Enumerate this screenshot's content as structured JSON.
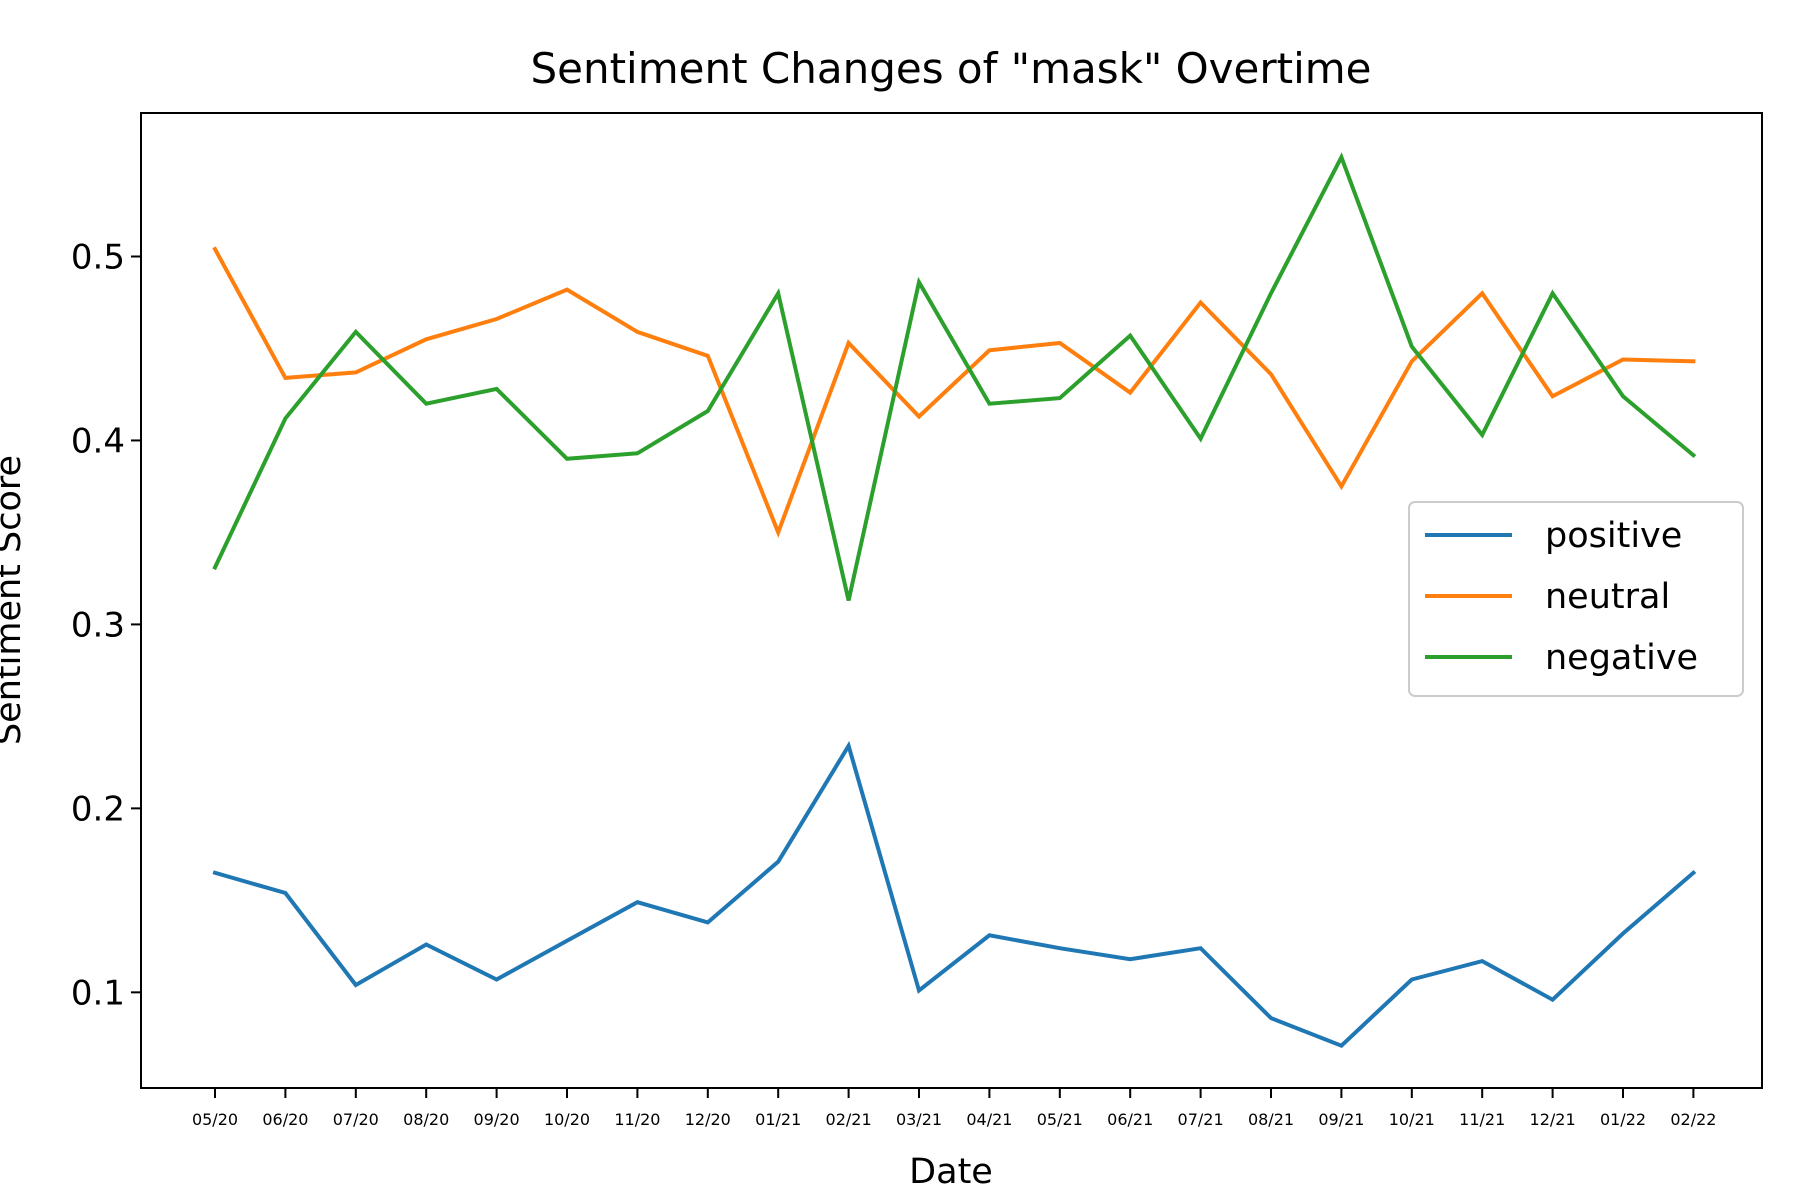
{
  "chart_data": {
    "type": "line",
    "title": "Sentiment Changes of \"mask\" Overtime",
    "xlabel": "Date",
    "ylabel": "Sentiment Score",
    "categories": [
      "05/20",
      "06/20",
      "07/20",
      "08/20",
      "09/20",
      "10/20",
      "11/20",
      "12/20",
      "01/21",
      "02/21",
      "03/21",
      "04/21",
      "05/21",
      "06/21",
      "07/21",
      "08/21",
      "09/21",
      "10/21",
      "11/21",
      "12/21",
      "01/22",
      "02/22"
    ],
    "ylim": [
      0.048,
      0.578
    ],
    "yticks": [
      0.1,
      0.2,
      0.3,
      0.4,
      0.5
    ],
    "grid": false,
    "legend_position": "center-right",
    "series": [
      {
        "name": "positive",
        "color": "#1f77b4",
        "values": [
          0.165,
          0.154,
          0.104,
          0.126,
          0.107,
          0.128,
          0.149,
          0.138,
          0.171,
          0.234,
          0.101,
          0.131,
          0.124,
          0.118,
          0.124,
          0.086,
          0.071,
          0.107,
          0.117,
          0.096,
          0.132,
          0.165
        ]
      },
      {
        "name": "neutral",
        "color": "#ff7f0e",
        "values": [
          0.504,
          0.434,
          0.437,
          0.455,
          0.466,
          0.482,
          0.459,
          0.446,
          0.35,
          0.453,
          0.413,
          0.449,
          0.453,
          0.426,
          0.475,
          0.436,
          0.375,
          0.443,
          0.48,
          0.424,
          0.444,
          0.443
        ]
      },
      {
        "name": "negative",
        "color": "#2ca02c",
        "values": [
          0.331,
          0.412,
          0.459,
          0.42,
          0.428,
          0.39,
          0.393,
          0.416,
          0.48,
          0.313,
          0.486,
          0.42,
          0.423,
          0.457,
          0.401,
          0.48,
          0.554,
          0.451,
          0.403,
          0.48,
          0.424,
          0.392
        ]
      }
    ]
  }
}
